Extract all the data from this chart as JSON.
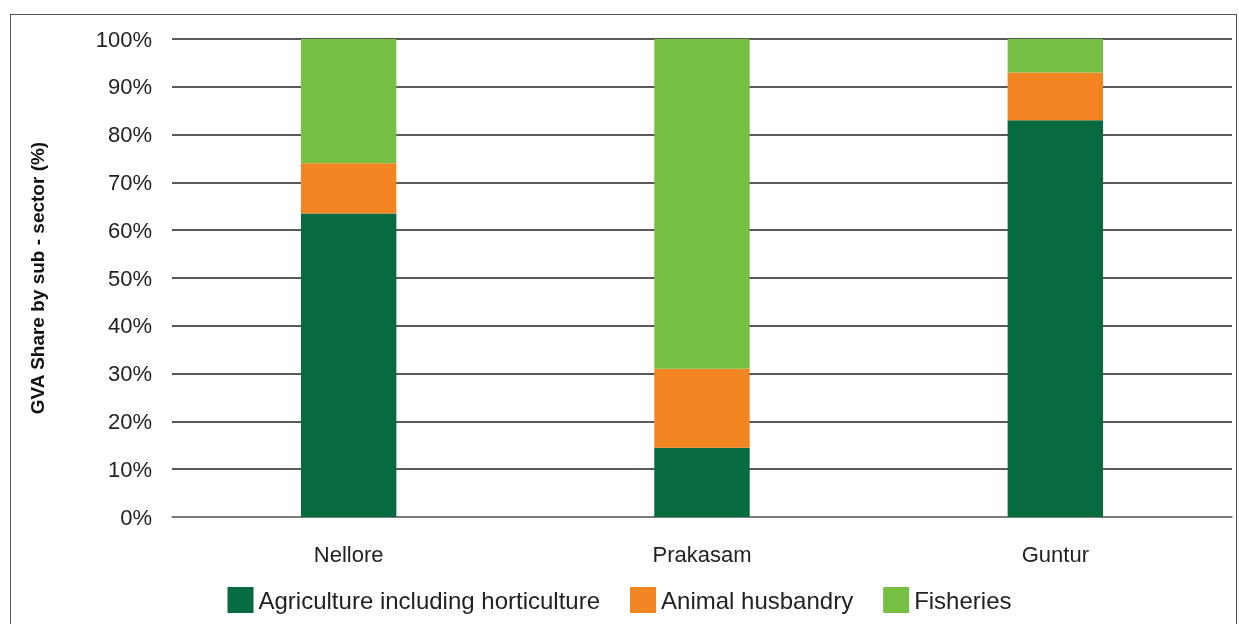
{
  "chart_data": {
    "type": "bar",
    "stacked": true,
    "ylabel": "GVA Share by sub - sector (%)",
    "categories": [
      "Nellore",
      "Prakasam",
      "Guntur"
    ],
    "series": [
      {
        "name": "Agriculture including horticulture",
        "color": "#086a3f",
        "values": [
          63.5,
          14.5,
          83
        ]
      },
      {
        "name": "Animal husbandry",
        "color": "#f38422",
        "values": [
          10.5,
          16.5,
          10
        ]
      },
      {
        "name": "Fisheries",
        "color": "#77bf43",
        "values": [
          26,
          69,
          7
        ]
      }
    ],
    "ylim": [
      0,
      100
    ],
    "yticks": [
      {
        "value": 0,
        "label": "0%"
      },
      {
        "value": 10,
        "label": "10%"
      },
      {
        "value": 20,
        "label": "20%"
      },
      {
        "value": 30,
        "label": "30%"
      },
      {
        "value": 40,
        "label": "40%"
      },
      {
        "value": 50,
        "label": "50%"
      },
      {
        "value": 60,
        "label": "60%"
      },
      {
        "value": 70,
        "label": "70%"
      },
      {
        "value": 80,
        "label": "80%"
      },
      {
        "value": 90,
        "label": "90%"
      },
      {
        "value": 100,
        "label": "100%"
      }
    ],
    "grid": "y",
    "legend": "bottom"
  }
}
